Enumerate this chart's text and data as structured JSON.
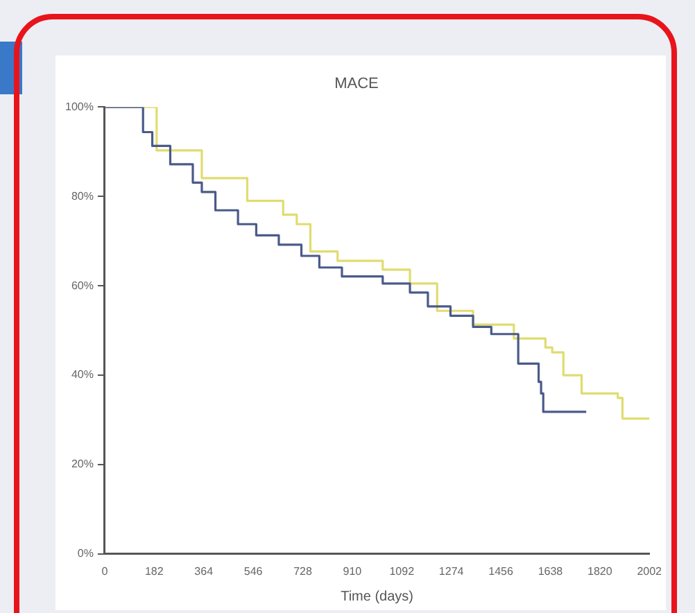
{
  "chart_data": {
    "type": "step",
    "title": "MACE",
    "xlabel": "Time (days)",
    "xlim": [
      0,
      2002
    ],
    "xticks": [
      0,
      182,
      364,
      546,
      728,
      910,
      1092,
      1274,
      1456,
      1638,
      1820,
      2002
    ],
    "ylim": [
      0,
      100
    ],
    "yticks": [
      {
        "value": 0,
        "label": "0%"
      },
      {
        "value": 20,
        "label": "20%"
      },
      {
        "value": 40,
        "label": "40%"
      },
      {
        "value": 60,
        "label": "60%"
      },
      {
        "value": 80,
        "label": "80%"
      },
      {
        "value": 100,
        "label": "100%"
      }
    ],
    "grid": false,
    "legend": false,
    "marker": "none",
    "line_style": "solid",
    "series": [
      {
        "color": "#4a5a8a",
        "x": [
          0,
          141,
          175,
          241,
          324,
          357,
          407,
          490,
          557,
          640,
          723,
          789,
          872,
          1022,
          1122,
          1188,
          1271,
          1354,
          1421,
          1504,
          1520,
          1570,
          1595,
          1604,
          1612,
          1770
        ],
        "values": [
          100,
          94.4,
          91.3,
          87.2,
          83.1,
          81,
          76.9,
          73.8,
          71.3,
          69.2,
          66.7,
          64.1,
          62.1,
          60.5,
          58.5,
          55.4,
          53.3,
          50.8,
          49.2,
          49.2,
          42.6,
          42.6,
          38.5,
          35.9,
          31.8,
          31.8
        ]
      },
      {
        "color": "#e0dc70",
        "x": [
          0,
          191,
          357,
          524,
          656,
          706,
          756,
          856,
          1022,
          1122,
          1222,
          1354,
          1504,
          1620,
          1645,
          1686,
          1753,
          1886,
          1903,
          2002
        ],
        "values": [
          100,
          90.3,
          84.1,
          79,
          75.9,
          73.8,
          67.7,
          65.6,
          63.6,
          60.5,
          54.4,
          51.3,
          48.2,
          46.2,
          45.1,
          40,
          35.9,
          34.9,
          30.3,
          30.3
        ]
      }
    ]
  }
}
